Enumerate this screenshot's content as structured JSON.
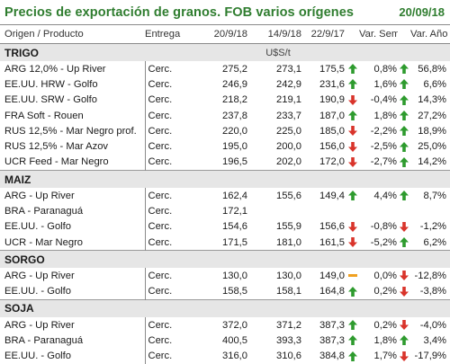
{
  "header": {
    "title": "Precios de exportación de granos. FOB varios orígenes",
    "date": "20/09/18"
  },
  "columns": {
    "product": "Origen / Producto",
    "delivery": "Entrega",
    "d1": "20/9/18",
    "d2": "14/9/18",
    "d3": "22/9/17",
    "var_week": "Var. Sem.",
    "var_year": "Var. Año"
  },
  "colors": {
    "title": "#2f7d2f",
    "up": "#2e9b2e",
    "down": "#d9342b",
    "flat": "#f0a020",
    "section_bg": "#e6e6e6"
  },
  "sections": [
    {
      "name": "TRIGO",
      "unit": "U$S/t",
      "rows": [
        {
          "product": "ARG 12,0% - Up River",
          "delivery": "Cerc.",
          "d1": "275,2",
          "d2": "273,1",
          "d3": "175,5",
          "a1": "up",
          "var_week": "0,8%",
          "a2": "up",
          "var_year": "56,8%"
        },
        {
          "product": "EE.UU. HRW - Golfo",
          "delivery": "Cerc.",
          "d1": "246,9",
          "d2": "242,9",
          "d3": "231,6",
          "a1": "up",
          "var_week": "1,6%",
          "a2": "up",
          "var_year": "6,6%"
        },
        {
          "product": "EE.UU. SRW - Golfo",
          "delivery": "Cerc.",
          "d1": "218,2",
          "d2": "219,1",
          "d3": "190,9",
          "a1": "down",
          "var_week": "-0,4%",
          "a2": "up",
          "var_year": "14,3%"
        },
        {
          "product": "FRA Soft - Rouen",
          "delivery": "Cerc.",
          "d1": "237,8",
          "d2": "233,7",
          "d3": "187,0",
          "a1": "up",
          "var_week": "1,8%",
          "a2": "up",
          "var_year": "27,2%"
        },
        {
          "product": "RUS 12,5% - Mar Negro prof.",
          "delivery": "Cerc.",
          "d1": "220,0",
          "d2": "225,0",
          "d3": "185,0",
          "a1": "down",
          "var_week": "-2,2%",
          "a2": "up",
          "var_year": "18,9%"
        },
        {
          "product": "RUS 12,5% - Mar Azov",
          "delivery": "Cerc.",
          "d1": "195,0",
          "d2": "200,0",
          "d3": "156,0",
          "a1": "down",
          "var_week": "-2,5%",
          "a2": "up",
          "var_year": "25,0%"
        },
        {
          "product": "UCR Feed - Mar Negro",
          "delivery": "Cerc.",
          "d1": "196,5",
          "d2": "202,0",
          "d3": "172,0",
          "a1": "down",
          "var_week": "-2,7%",
          "a2": "up",
          "var_year": "14,2%"
        }
      ]
    },
    {
      "name": "MAIZ",
      "unit": "",
      "rows": [
        {
          "product": "ARG - Up River",
          "delivery": "Cerc.",
          "d1": "162,4",
          "d2": "155,6",
          "d3": "149,4",
          "a1": "up",
          "var_week": "4,4%",
          "a2": "up",
          "var_year": "8,7%"
        },
        {
          "product": "BRA - Paranaguá",
          "delivery": "Cerc.",
          "d1": "172,1",
          "d2": "",
          "d3": "",
          "a1": "",
          "var_week": "",
          "a2": "",
          "var_year": ""
        },
        {
          "product": "EE.UU. - Golfo",
          "delivery": "Cerc.",
          "d1": "154,6",
          "d2": "155,9",
          "d3": "156,6",
          "a1": "down",
          "var_week": "-0,8%",
          "a2": "down",
          "var_year": "-1,2%"
        },
        {
          "product": "UCR - Mar Negro",
          "delivery": "Cerc.",
          "d1": "171,5",
          "d2": "181,0",
          "d3": "161,5",
          "a1": "down",
          "var_week": "-5,2%",
          "a2": "up",
          "var_year": "6,2%"
        }
      ]
    },
    {
      "name": "SORGO",
      "unit": "",
      "rows": [
        {
          "product": "ARG - Up River",
          "delivery": "Cerc.",
          "d1": "130,0",
          "d2": "130,0",
          "d3": "149,0",
          "a1": "flat",
          "var_week": "0,0%",
          "a2": "down",
          "var_year": "-12,8%"
        },
        {
          "product": "EE.UU. - Golfo",
          "delivery": "Cerc.",
          "d1": "158,5",
          "d2": "158,1",
          "d3": "164,8",
          "a1": "up",
          "var_week": "0,2%",
          "a2": "down",
          "var_year": "-3,8%"
        }
      ]
    },
    {
      "name": "SOJA",
      "unit": "",
      "rows": [
        {
          "product": "ARG - Up River",
          "delivery": "Cerc.",
          "d1": "372,0",
          "d2": "371,2",
          "d3": "387,3",
          "a1": "up",
          "var_week": "0,2%",
          "a2": "down",
          "var_year": "-4,0%"
        },
        {
          "product": "BRA - Paranaguá",
          "delivery": "Cerc.",
          "d1": "400,5",
          "d2": "393,3",
          "d3": "387,3",
          "a1": "up",
          "var_week": "1,8%",
          "a2": "up",
          "var_year": "3,4%"
        },
        {
          "product": "EE.UU. - Golfo",
          "delivery": "Cerc.",
          "d1": "316,0",
          "d2": "310,6",
          "d3": "384,8",
          "a1": "up",
          "var_week": "1,7%",
          "a2": "down",
          "var_year": "-17,9%"
        }
      ]
    }
  ]
}
